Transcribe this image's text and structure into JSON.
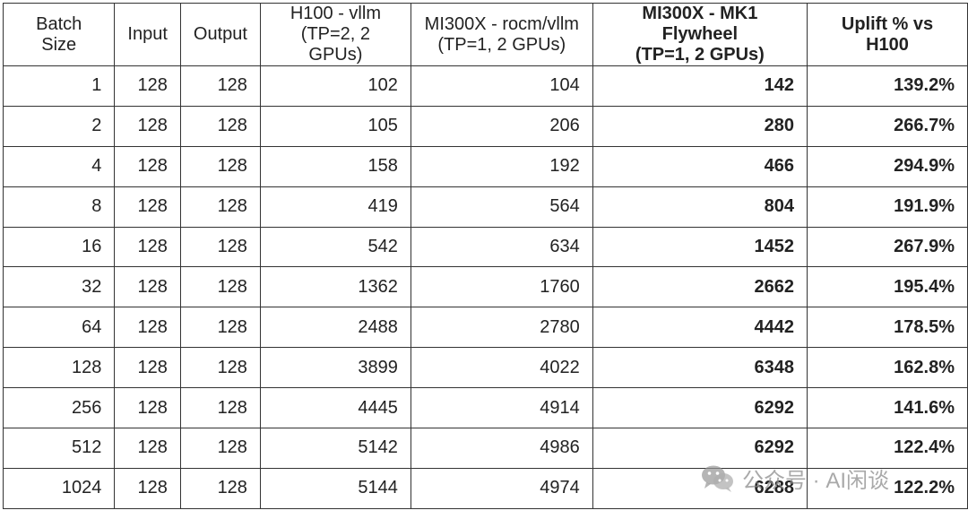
{
  "table": {
    "headers": [
      {
        "line1": "Batch Size",
        "line2": ""
      },
      {
        "line1": "Input",
        "line2": ""
      },
      {
        "line1": "Output",
        "line2": ""
      },
      {
        "line1": "H100 - vllm",
        "line2": "(TP=2, 2 GPUs)"
      },
      {
        "line1": "MI300X - rocm/vllm",
        "line2": "(TP=1, 2 GPUs)"
      },
      {
        "line1": "MI300X - MK1 Flywheel",
        "line2": "(TP=1, 2 GPUs)"
      },
      {
        "line1": "Uplift % vs H100",
        "line2": ""
      }
    ],
    "rows": [
      [
        "1",
        "128",
        "128",
        "102",
        "104",
        "142",
        "139.2%"
      ],
      [
        "2",
        "128",
        "128",
        "105",
        "206",
        "280",
        "266.7%"
      ],
      [
        "4",
        "128",
        "128",
        "158",
        "192",
        "466",
        "294.9%"
      ],
      [
        "8",
        "128",
        "128",
        "419",
        "564",
        "804",
        "191.9%"
      ],
      [
        "16",
        "128",
        "128",
        "542",
        "634",
        "1452",
        "267.9%"
      ],
      [
        "32",
        "128",
        "128",
        "1362",
        "1760",
        "2662",
        "195.4%"
      ],
      [
        "64",
        "128",
        "128",
        "2488",
        "2780",
        "4442",
        "178.5%"
      ],
      [
        "128",
        "128",
        "128",
        "3899",
        "4022",
        "6348",
        "162.8%"
      ],
      [
        "256",
        "128",
        "128",
        "4445",
        "4914",
        "6292",
        "141.6%"
      ],
      [
        "512",
        "128",
        "128",
        "5142",
        "4986",
        "6292",
        "122.4%"
      ],
      [
        "1024",
        "128",
        "128",
        "5144",
        "4974",
        "6288",
        "122.2%"
      ]
    ]
  },
  "watermark": {
    "text": "公众号 · AI闲谈",
    "icon": "wechat-icon"
  }
}
